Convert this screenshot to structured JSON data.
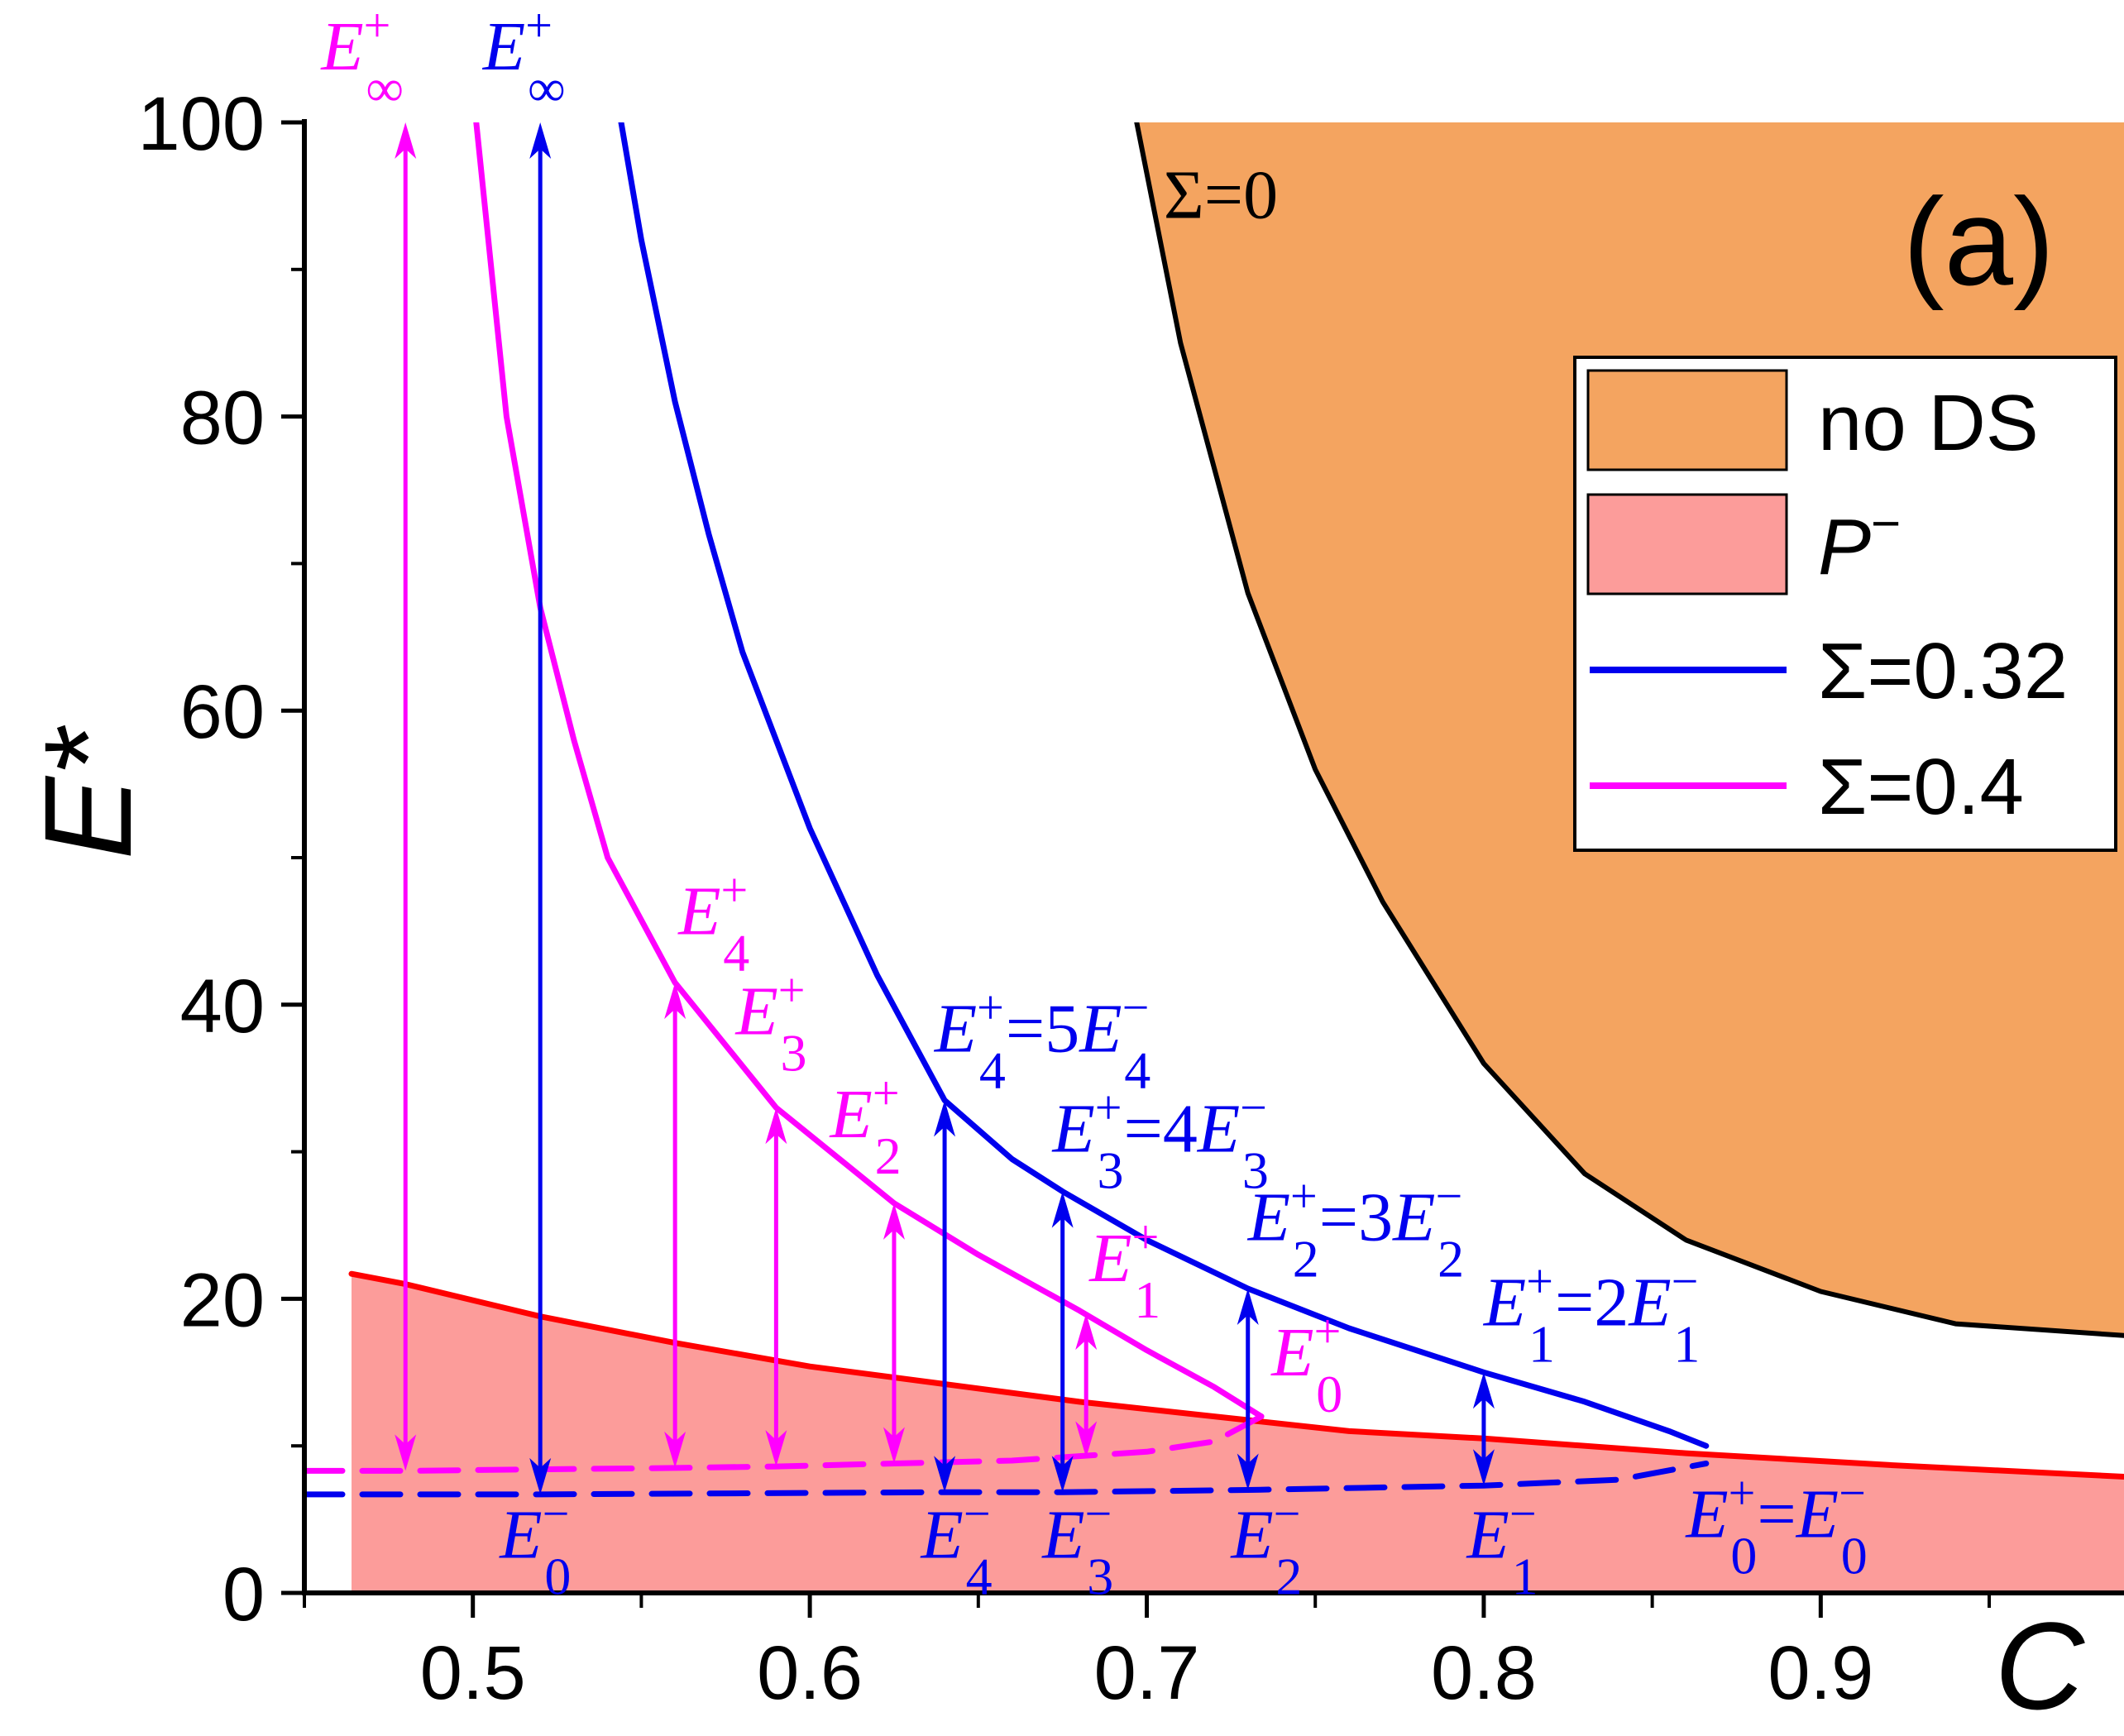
{
  "chart_data": {
    "type": "line",
    "panel_label": "(a)",
    "xlabel": "C",
    "ylabel": "E*",
    "xlim": [
      0.45,
      0.99
    ],
    "ylim": [
      0,
      100
    ],
    "xticks": [
      0.5,
      0.6,
      0.7,
      0.8,
      0.9
    ],
    "xtick_labels": [
      "0.5",
      "0.6",
      "0.7",
      "0.8",
      "0.9"
    ],
    "yticks": [
      0,
      20,
      40,
      60,
      80,
      100
    ],
    "ytick_labels": [
      "0",
      "20",
      "40",
      "60",
      "80",
      "100"
    ],
    "colors": {
      "no_ds": "#f4a460",
      "p_minus": "#fc9c9a",
      "p_minus_line": "#ff0000",
      "sigma_032": "#0000ee",
      "sigma_04": "#ff00ff",
      "sigma_0": "#000000"
    },
    "legend": {
      "position": "top-right",
      "entries": [
        {
          "kind": "patch",
          "color_key": "no_ds",
          "label": "no DS"
        },
        {
          "kind": "patch",
          "color_key": "p_minus",
          "label": "P",
          "sup": "−"
        },
        {
          "kind": "line",
          "color_key": "sigma_032",
          "label": "Σ=0.32"
        },
        {
          "kind": "line",
          "color_key": "sigma_04",
          "label": "Σ=0.4"
        }
      ]
    },
    "series": [
      {
        "name": "Σ=0 boundary (no DS region)",
        "color_key": "sigma_0",
        "label": "Σ=0",
        "points": [
          [
            0.697,
            100
          ],
          [
            0.71,
            85
          ],
          [
            0.73,
            68
          ],
          [
            0.75,
            56
          ],
          [
            0.77,
            47
          ],
          [
            0.8,
            36
          ],
          [
            0.83,
            28.5
          ],
          [
            0.86,
            24
          ],
          [
            0.9,
            20.5
          ],
          [
            0.94,
            18.3
          ],
          [
            0.99,
            17.5
          ]
        ]
      },
      {
        "name": "P− boundary",
        "color_key": "p_minus_line",
        "points": [
          [
            0.464,
            21.7
          ],
          [
            0.48,
            21
          ],
          [
            0.52,
            18.8
          ],
          [
            0.56,
            17
          ],
          [
            0.6,
            15.4
          ],
          [
            0.64,
            14.2
          ],
          [
            0.68,
            13
          ],
          [
            0.72,
            12
          ],
          [
            0.76,
            11
          ],
          [
            0.8,
            10.5
          ],
          [
            0.86,
            9.5
          ],
          [
            0.92,
            8.7
          ],
          [
            0.99,
            7.9
          ]
        ]
      },
      {
        "name": "Σ=0.32 upper",
        "color_key": "sigma_032",
        "points": [
          [
            0.544,
            100
          ],
          [
            0.55,
            92
          ],
          [
            0.56,
            81
          ],
          [
            0.57,
            72
          ],
          [
            0.58,
            64
          ],
          [
            0.6,
            52
          ],
          [
            0.62,
            42
          ],
          [
            0.64,
            33.5
          ],
          [
            0.66,
            29.5
          ],
          [
            0.675,
            27.3
          ],
          [
            0.7,
            24
          ],
          [
            0.73,
            20.7
          ],
          [
            0.76,
            18
          ],
          [
            0.8,
            15
          ],
          [
            0.83,
            13
          ],
          [
            0.855,
            11
          ],
          [
            0.866,
            10
          ]
        ]
      },
      {
        "name": "Σ=0.32 lower",
        "color_key": "sigma_032",
        "dashed": true,
        "points": [
          [
            0.45,
            6.7
          ],
          [
            0.52,
            6.7
          ],
          [
            0.6,
            6.8
          ],
          [
            0.64,
            6.85
          ],
          [
            0.675,
            6.85
          ],
          [
            0.73,
            7.0
          ],
          [
            0.8,
            7.3
          ],
          [
            0.84,
            7.7
          ],
          [
            0.866,
            8.8
          ]
        ]
      },
      {
        "name": "Σ=0.4 upper",
        "color_key": "sigma_04",
        "points": [
          [
            0.501,
            100
          ],
          [
            0.51,
            80
          ],
          [
            0.52,
            67
          ],
          [
            0.53,
            58
          ],
          [
            0.54,
            50
          ],
          [
            0.56,
            41.5
          ],
          [
            0.59,
            33
          ],
          [
            0.625,
            26.5
          ],
          [
            0.65,
            23
          ],
          [
            0.68,
            19.2
          ],
          [
            0.7,
            16.5
          ],
          [
            0.72,
            14
          ],
          [
            0.734,
            12
          ]
        ]
      },
      {
        "name": "Σ=0.4 lower",
        "color_key": "sigma_04",
        "dashed": true,
        "points": [
          [
            0.45,
            8.3
          ],
          [
            0.48,
            8.3
          ],
          [
            0.52,
            8.4
          ],
          [
            0.56,
            8.5
          ],
          [
            0.59,
            8.6
          ],
          [
            0.625,
            8.8
          ],
          [
            0.66,
            9.0
          ],
          [
            0.7,
            9.6
          ],
          [
            0.72,
            10.3
          ],
          [
            0.734,
            12
          ]
        ]
      }
    ],
    "arrows": [
      {
        "x": 0.52,
        "y1": 6.7,
        "y2": 100,
        "color_key": "sigma_032"
      },
      {
        "x": 0.64,
        "y1": 6.85,
        "y2": 33.5,
        "color_key": "sigma_032"
      },
      {
        "x": 0.675,
        "y1": 6.85,
        "y2": 27.3,
        "color_key": "sigma_032"
      },
      {
        "x": 0.73,
        "y1": 7.0,
        "y2": 20.7,
        "color_key": "sigma_032"
      },
      {
        "x": 0.8,
        "y1": 7.3,
        "y2": 15.0,
        "color_key": "sigma_032"
      },
      {
        "x": 0.48,
        "y1": 8.3,
        "y2": 100,
        "color_key": "sigma_04"
      },
      {
        "x": 0.56,
        "y1": 8.5,
        "y2": 41.5,
        "color_key": "sigma_04"
      },
      {
        "x": 0.59,
        "y1": 8.6,
        "y2": 33.0,
        "color_key": "sigma_04"
      },
      {
        "x": 0.625,
        "y1": 8.8,
        "y2": 26.5,
        "color_key": "sigma_04"
      },
      {
        "x": 0.682,
        "y1": 9.2,
        "y2": 19.0,
        "color_key": "sigma_04"
      }
    ],
    "annotations": [
      {
        "text": "Σ=0",
        "x": 0.705,
        "y": 93.5,
        "color_key": "sigma_0",
        "font": "serif"
      },
      {
        "base": "E",
        "sup": "+",
        "sub": "∞",
        "x": 0.455,
        "y": 103.6,
        "color_key": "sigma_04"
      },
      {
        "base": "E",
        "sup": "+",
        "sub": "∞",
        "x": 0.503,
        "y": 103.6,
        "color_key": "sigma_032"
      },
      {
        "base": "E",
        "sup": "+",
        "sub": "4",
        "x": 0.561,
        "y": 44.8,
        "color_key": "sigma_04"
      },
      {
        "base": "E",
        "sup": "+",
        "sub": "3",
        "x": 0.578,
        "y": 38.0,
        "color_key": "sigma_04"
      },
      {
        "base": "E",
        "sup": "+",
        "sub": "2",
        "x": 0.606,
        "y": 31.0,
        "color_key": "sigma_04"
      },
      {
        "base": "E",
        "sup": "+",
        "sub": "1",
        "x": 0.683,
        "y": 21.2,
        "color_key": "sigma_04"
      },
      {
        "base": "E",
        "sup": "+",
        "sub": "0",
        "x": 0.737,
        "y": 14.8,
        "color_key": "sigma_04"
      },
      {
        "base": "E",
        "sup": "+",
        "sub": "4",
        "tail": "=5",
        "base2": "E",
        "sup2": "−",
        "sub2": "4",
        "x": 0.637,
        "y": 36.8,
        "color_key": "sigma_032"
      },
      {
        "base": "E",
        "sup": "+",
        "sub": "3",
        "tail": "=4",
        "base2": "E",
        "sup2": "−",
        "sub2": "3",
        "x": 0.672,
        "y": 30.0,
        "color_key": "sigma_032"
      },
      {
        "base": "E",
        "sup": "+",
        "sub": "2",
        "tail": "=3",
        "base2": "E",
        "sup2": "−",
        "sub2": "2",
        "x": 0.73,
        "y": 24.0,
        "color_key": "sigma_032"
      },
      {
        "base": "E",
        "sup": "+",
        "sub": "1",
        "tail": "=2",
        "base2": "E",
        "sup2": "−",
        "sub2": "1",
        "x": 0.8,
        "y": 18.2,
        "color_key": "sigma_032"
      },
      {
        "base": "E",
        "sup": "+",
        "sub": "0",
        "tail": "=",
        "base2": "E",
        "sup2": "−",
        "sub2": "0",
        "x": 0.86,
        "y": 3.8,
        "color_key": "sigma_032"
      },
      {
        "base": "E",
        "sup": "−",
        "sub": "0",
        "x": 0.508,
        "y": 2.4,
        "color_key": "sigma_032"
      },
      {
        "base": "E",
        "sup": "−",
        "sub": "4",
        "x": 0.633,
        "y": 2.4,
        "color_key": "sigma_032"
      },
      {
        "base": "E",
        "sup": "−",
        "sub": "3",
        "x": 0.669,
        "y": 2.4,
        "color_key": "sigma_032"
      },
      {
        "base": "E",
        "sup": "−",
        "sub": "2",
        "x": 0.725,
        "y": 2.4,
        "color_key": "sigma_032"
      },
      {
        "base": "E",
        "sup": "−",
        "sub": "1",
        "x": 0.795,
        "y": 2.4,
        "color_key": "sigma_032"
      }
    ]
  }
}
